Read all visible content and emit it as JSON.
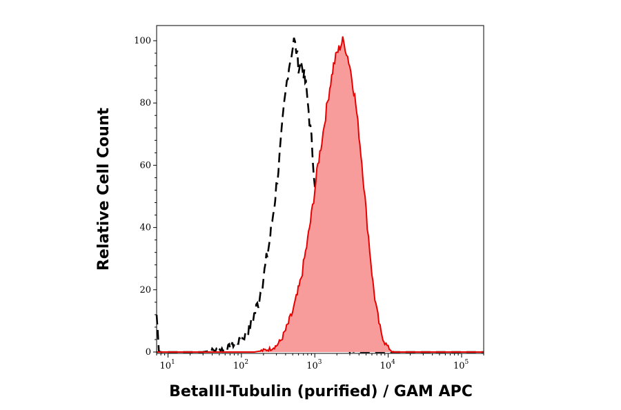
{
  "chart_data": {
    "type": "area",
    "title": "",
    "xlabel": "BetaIII-Tubulin (purified) / GAM APC",
    "ylabel": "Relative Cell Count",
    "x_scale": "log",
    "xlim": [
      7,
      200000
    ],
    "ylim": [
      0,
      105
    ],
    "grid": false,
    "y_ticks": [
      0,
      20,
      40,
      60,
      80,
      100
    ],
    "x_ticks": [
      {
        "value": 10,
        "base": "10",
        "exp": "1"
      },
      {
        "value": 100,
        "base": "10",
        "exp": "2"
      },
      {
        "value": 1000,
        "base": "10",
        "exp": "3"
      },
      {
        "value": 10000,
        "base": "10",
        "exp": "4"
      },
      {
        "value": 100000,
        "base": "10",
        "exp": "5"
      }
    ],
    "series": [
      {
        "style": "dashed-outline",
        "color": "#000000",
        "points": [
          [
            7,
            12
          ],
          [
            7.5,
            1
          ],
          [
            8,
            0
          ],
          [
            30,
            0
          ],
          [
            40,
            0.5
          ],
          [
            60,
            1
          ],
          [
            80,
            2.5
          ],
          [
            100,
            4
          ],
          [
            120,
            6
          ],
          [
            140,
            10
          ],
          [
            170,
            16
          ],
          [
            200,
            24
          ],
          [
            240,
            35
          ],
          [
            280,
            47
          ],
          [
            330,
            62
          ],
          [
            380,
            78
          ],
          [
            430,
            90
          ],
          [
            480,
            96
          ],
          [
            520,
            100
          ],
          [
            560,
            97
          ],
          [
            600,
            92
          ],
          [
            650,
            93
          ],
          [
            700,
            90
          ],
          [
            760,
            85
          ],
          [
            820,
            78
          ],
          [
            900,
            68
          ],
          [
            1000,
            55
          ],
          [
            1100,
            45
          ],
          [
            1200,
            34
          ],
          [
            1300,
            26
          ],
          [
            1450,
            18
          ],
          [
            1600,
            12
          ],
          [
            1800,
            7
          ],
          [
            2000,
            4
          ],
          [
            2300,
            2
          ],
          [
            2600,
            1
          ],
          [
            3000,
            0.5
          ],
          [
            3500,
            0
          ],
          [
            200000,
            0
          ]
        ]
      },
      {
        "style": "filled",
        "color": "#e60000",
        "fill": "#f79b9b",
        "points": [
          [
            7,
            0
          ],
          [
            150,
            0
          ],
          [
            200,
            0.5
          ],
          [
            250,
            1
          ],
          [
            300,
            2
          ],
          [
            350,
            4
          ],
          [
            400,
            7
          ],
          [
            450,
            10
          ],
          [
            500,
            13
          ],
          [
            560,
            17
          ],
          [
            630,
            22
          ],
          [
            700,
            28
          ],
          [
            800,
            36
          ],
          [
            900,
            44
          ],
          [
            1000,
            52
          ],
          [
            1100,
            60
          ],
          [
            1250,
            68
          ],
          [
            1400,
            76
          ],
          [
            1600,
            85
          ],
          [
            1800,
            92
          ],
          [
            2000,
            96
          ],
          [
            2200,
            98
          ],
          [
            2400,
            100
          ],
          [
            2600,
            98
          ],
          [
            2800,
            95
          ],
          [
            3000,
            92
          ],
          [
            3300,
            86
          ],
          [
            3600,
            80
          ],
          [
            4000,
            70
          ],
          [
            4500,
            58
          ],
          [
            5000,
            45
          ],
          [
            5600,
            33
          ],
          [
            6200,
            22
          ],
          [
            7000,
            13
          ],
          [
            8000,
            6
          ],
          [
            9000,
            3
          ],
          [
            10000,
            1.5
          ],
          [
            11000,
            0.5
          ],
          [
            12000,
            0
          ],
          [
            200000,
            0
          ]
        ]
      }
    ]
  }
}
